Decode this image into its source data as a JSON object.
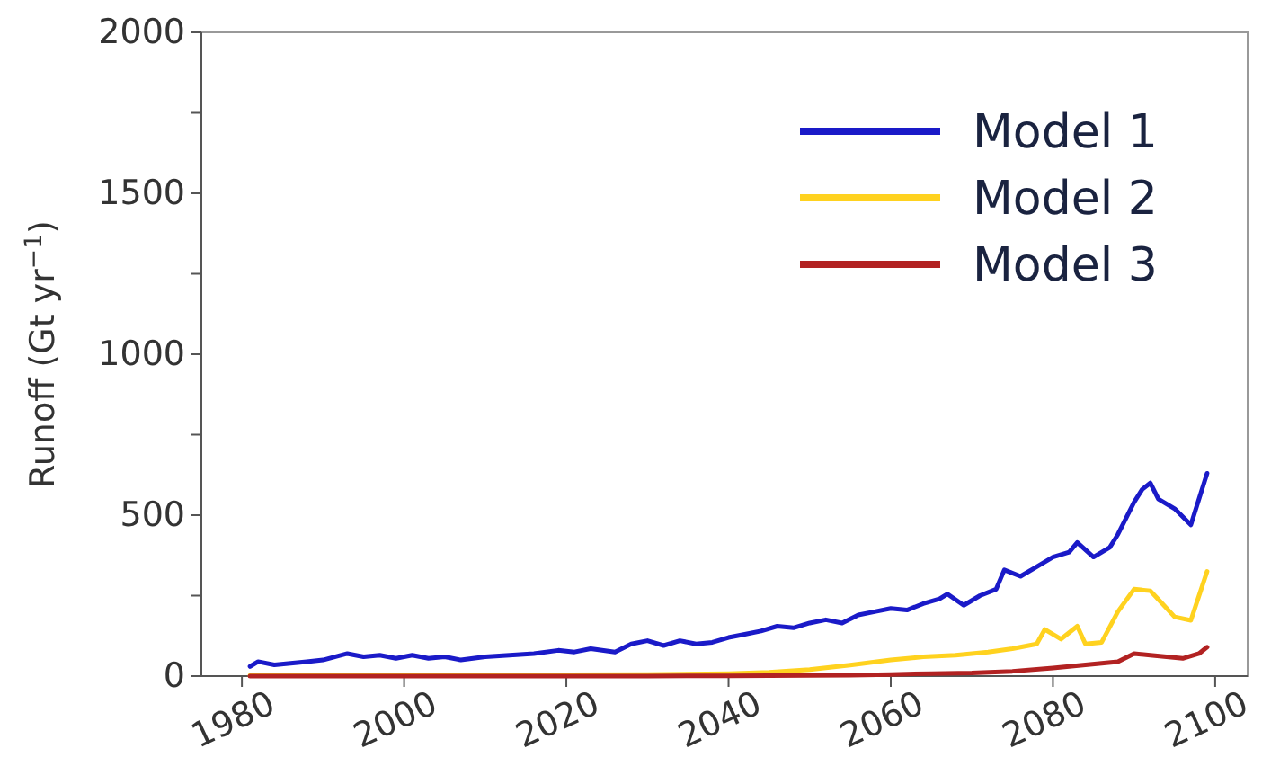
{
  "chart_data": {
    "type": "line",
    "ylabel": "Runoff (Gt yr$^{−1}$)",
    "xlim": [
      1975,
      2104
    ],
    "ylim": [
      0,
      2000
    ],
    "xticks": [
      1980,
      2000,
      2020,
      2040,
      2060,
      2080,
      2100
    ],
    "yticks": [
      0,
      {
        "value": 250,
        "label": null
      },
      500,
      {
        "value": 750,
        "label": null
      },
      1000,
      {
        "value": 1250,
        "label": null
      },
      1500,
      {
        "value": 1750,
        "label": null
      },
      2000
    ],
    "grid": false,
    "legend": "top right",
    "line_style": "solid",
    "marker": "none",
    "series": [
      {
        "name": "Model 1",
        "color": "#1a1ac8",
        "x": [
          1981,
          1982,
          1984,
          1986,
          1988,
          1990,
          1993,
          1995,
          1997,
          1999,
          2001,
          2003,
          2005,
          2007,
          2010,
          2013,
          2016,
          2019,
          2021,
          2023,
          2026,
          2028,
          2030,
          2032,
          2034,
          2036,
          2038,
          2040,
          2042,
          2044,
          2046,
          2048,
          2050,
          2052,
          2054,
          2056,
          2058,
          2060,
          2062,
          2064,
          2066,
          2067,
          2069,
          2071,
          2073,
          2074,
          2076,
          2078,
          2080,
          2082,
          2083,
          2085,
          2087,
          2088,
          2090,
          2091,
          2092,
          2093,
          2095,
          2097,
          2099
        ],
        "values": [
          30,
          45,
          35,
          40,
          45,
          50,
          70,
          60,
          65,
          55,
          65,
          55,
          60,
          50,
          60,
          65,
          70,
          80,
          75,
          85,
          75,
          100,
          110,
          95,
          110,
          100,
          105,
          120,
          130,
          140,
          155,
          150,
          165,
          175,
          165,
          190,
          200,
          210,
          205,
          225,
          240,
          255,
          220,
          250,
          270,
          330,
          310,
          340,
          370,
          385,
          415,
          370,
          400,
          440,
          540,
          580,
          600,
          550,
          520,
          470,
          630
        ]
      },
      {
        "name": "Model 2",
        "color": "#ffd21f",
        "x": [
          1981,
          1990,
          2000,
          2010,
          2020,
          2030,
          2040,
          2045,
          2050,
          2055,
          2060,
          2064,
          2068,
          2072,
          2075,
          2078,
          2079,
          2081,
          2083,
          2084,
          2086,
          2088,
          2090,
          2092,
          2093,
          2095,
          2097,
          2099
        ],
        "values": [
          2,
          2,
          3,
          3,
          4,
          5,
          8,
          12,
          20,
          34,
          50,
          60,
          65,
          75,
          85,
          100,
          145,
          115,
          155,
          100,
          105,
          200,
          270,
          265,
          238,
          184,
          173,
          325
        ]
      },
      {
        "name": "Model 3",
        "color": "#b22222",
        "x": [
          1981,
          1990,
          2000,
          2010,
          2020,
          2030,
          2040,
          2050,
          2055,
          2060,
          2065,
          2070,
          2075,
          2080,
          2084,
          2088,
          2090,
          2092,
          2094,
          2096,
          2098,
          2099
        ],
        "values": [
          0,
          0,
          0,
          0,
          0,
          0,
          1,
          2,
          3,
          5,
          8,
          10,
          15,
          25,
          35,
          45,
          70,
          65,
          60,
          55,
          70,
          90
        ]
      }
    ]
  }
}
